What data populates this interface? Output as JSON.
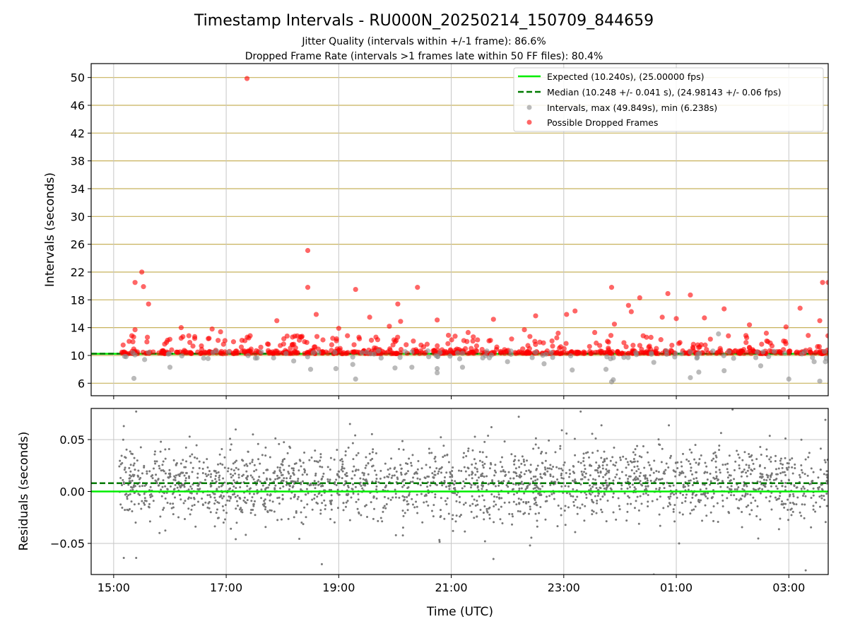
{
  "chart_data": [
    {
      "type": "scatter",
      "title": "Timestamp Intervals - RU000N_20250214_150709_844659",
      "subtitle_lines": [
        "Jitter Quality (intervals within +/-1 frame): 86.6%",
        "Dropped Frame Rate (intervals >1 frames late within 50 FF files): 80.4%"
      ],
      "xlabel": "",
      "ylabel": "Intervals (seconds)",
      "x_ticks": [
        "15:00",
        "17:00",
        "19:00",
        "21:00",
        "23:00",
        "01:00",
        "03:00"
      ],
      "x_range_hours": [
        14.6,
        27.7
      ],
      "ylim": [
        4.2,
        52.0
      ],
      "y_ticks": [
        6,
        10,
        14,
        18,
        22,
        26,
        30,
        34,
        38,
        42,
        46,
        50
      ],
      "grid": true,
      "legend_placement": "top-right",
      "legend": [
        "Expected (10.240s), (25.00000 fps)",
        "Median (10.248 +/- 0.041 s), (24.98143 +/- 0.06 fps)",
        "Intervals, max (49.849s), min (6.238s)",
        "Possible Dropped Frames"
      ],
      "expected_interval": 10.24,
      "median_interval": 10.248,
      "data_start_hour": 15.1,
      "data_end_hour": 27.7,
      "interval_max": 49.849,
      "interval_min": 6.238,
      "dropped_frame_points": [
        {
          "x": 17.37,
          "y": 49.85
        },
        {
          "x": 18.45,
          "y": 25.1
        },
        {
          "x": 15.38,
          "y": 20.5
        },
        {
          "x": 15.5,
          "y": 22.0
        },
        {
          "x": 15.53,
          "y": 19.9
        },
        {
          "x": 15.62,
          "y": 17.4
        },
        {
          "x": 18.45,
          "y": 19.8
        },
        {
          "x": 19.3,
          "y": 19.5
        },
        {
          "x": 20.05,
          "y": 17.4
        },
        {
          "x": 20.4,
          "y": 19.8
        },
        {
          "x": 23.85,
          "y": 19.8
        },
        {
          "x": 24.35,
          "y": 18.3
        },
        {
          "x": 24.85,
          "y": 18.9
        },
        {
          "x": 25.25,
          "y": 18.7
        },
        {
          "x": 25.85,
          "y": 16.7
        },
        {
          "x": 27.6,
          "y": 20.5
        },
        {
          "x": 27.7,
          "y": 20.5
        },
        {
          "x": 24.15,
          "y": 17.2
        },
        {
          "x": 24.2,
          "y": 16.3
        },
        {
          "x": 23.2,
          "y": 16.4
        },
        {
          "x": 27.2,
          "y": 16.8
        },
        {
          "x": 18.6,
          "y": 15.9
        },
        {
          "x": 17.9,
          "y": 15.0
        },
        {
          "x": 20.1,
          "y": 14.9
        },
        {
          "x": 20.75,
          "y": 15.1
        },
        {
          "x": 21.75,
          "y": 15.2
        },
        {
          "x": 22.5,
          "y": 15.7
        },
        {
          "x": 19.55,
          "y": 15.5
        },
        {
          "x": 23.05,
          "y": 15.9
        },
        {
          "x": 24.75,
          "y": 15.5
        },
        {
          "x": 25.5,
          "y": 15.4
        },
        {
          "x": 27.55,
          "y": 15.0
        },
        {
          "x": 26.3,
          "y": 14.4
        },
        {
          "x": 23.9,
          "y": 14.5
        },
        {
          "x": 15.38,
          "y": 13.7
        },
        {
          "x": 16.2,
          "y": 14.0
        },
        {
          "x": 16.75,
          "y": 13.8
        },
        {
          "x": 19.0,
          "y": 13.9
        },
        {
          "x": 19.9,
          "y": 14.2
        },
        {
          "x": 21.3,
          "y": 13.3
        },
        {
          "x": 22.9,
          "y": 13.2
        },
        {
          "x": 23.55,
          "y": 13.3
        },
        {
          "x": 25.0,
          "y": 15.3
        },
        {
          "x": 26.95,
          "y": 14.1
        },
        {
          "x": 16.9,
          "y": 13.4
        },
        {
          "x": 17.75,
          "y": 11.6
        },
        {
          "x": 18.3,
          "y": 12.2
        },
        {
          "x": 20.95,
          "y": 12.9
        },
        {
          "x": 22.3,
          "y": 13.7
        },
        {
          "x": 24.55,
          "y": 12.6
        },
        {
          "x": 26.6,
          "y": 13.2
        }
      ],
      "interval_points": [
        {
          "x": 15.36,
          "y": 6.7
        },
        {
          "x": 15.55,
          "y": 9.4
        },
        {
          "x": 16.0,
          "y": 8.3
        },
        {
          "x": 18.2,
          "y": 9.2
        },
        {
          "x": 18.5,
          "y": 8.0
        },
        {
          "x": 18.95,
          "y": 8.1
        },
        {
          "x": 19.3,
          "y": 6.6
        },
        {
          "x": 19.25,
          "y": 8.7
        },
        {
          "x": 20.0,
          "y": 8.2
        },
        {
          "x": 20.3,
          "y": 8.3
        },
        {
          "x": 20.75,
          "y": 7.5
        },
        {
          "x": 20.75,
          "y": 8.1
        },
        {
          "x": 21.2,
          "y": 8.3
        },
        {
          "x": 22.0,
          "y": 9.1
        },
        {
          "x": 22.65,
          "y": 8.8
        },
        {
          "x": 23.15,
          "y": 7.9
        },
        {
          "x": 23.75,
          "y": 8.0
        },
        {
          "x": 23.85,
          "y": 6.2
        },
        {
          "x": 23.88,
          "y": 6.5
        },
        {
          "x": 24.6,
          "y": 9.0
        },
        {
          "x": 25.25,
          "y": 6.8
        },
        {
          "x": 25.4,
          "y": 7.6
        },
        {
          "x": 25.85,
          "y": 7.8
        },
        {
          "x": 26.5,
          "y": 8.5
        },
        {
          "x": 27.0,
          "y": 6.6
        },
        {
          "x": 27.55,
          "y": 6.3
        },
        {
          "x": 27.45,
          "y": 9.1
        },
        {
          "x": 27.65,
          "y": 9.1
        },
        {
          "x": 25.75,
          "y": 13.1
        },
        {
          "x": 21.15,
          "y": 9.5
        }
      ]
    },
    {
      "type": "scatter",
      "xlabel": "Time (UTC)",
      "ylabel": "Residuals (seconds)",
      "x_ticks": [
        "15:00",
        "17:00",
        "19:00",
        "21:00",
        "23:00",
        "01:00",
        "03:00"
      ],
      "ylim": [
        -0.08,
        0.08
      ],
      "y_ticks": [
        "0.05",
        "0.00",
        "−0.05"
      ],
      "y_tick_values": [
        0.05,
        0.0,
        -0.05
      ],
      "grid": true,
      "expected_residual": 0.0,
      "median_residual": 0.008,
      "residual_spread_std": 0.018,
      "outlier_points": [
        {
          "x": 15.18,
          "y": 0.063
        },
        {
          "x": 15.4,
          "y": 0.077
        },
        {
          "x": 15.18,
          "y": -0.064
        },
        {
          "x": 15.4,
          "y": -0.064
        },
        {
          "x": 18.7,
          "y": -0.07
        },
        {
          "x": 19.2,
          "y": 0.065
        },
        {
          "x": 21.6,
          "y": -0.048
        },
        {
          "x": 21.75,
          "y": -0.065
        },
        {
          "x": 22.2,
          "y": 0.072
        },
        {
          "x": 22.4,
          "y": -0.052
        },
        {
          "x": 24.6,
          "y": -0.08
        },
        {
          "x": 25.05,
          "y": -0.05
        },
        {
          "x": 27.3,
          "y": -0.076
        },
        {
          "x": 27.65,
          "y": 0.069
        },
        {
          "x": 23.3,
          "y": 0.077
        },
        {
          "x": 26.0,
          "y": 0.079
        }
      ]
    }
  ],
  "colors": {
    "expected": "#00ee00",
    "median": "#007a00",
    "intervals": "#8c8c8c",
    "dropped": "#ff0000",
    "major_grid": "#c8b25c",
    "grid": "#c6c6c6"
  }
}
